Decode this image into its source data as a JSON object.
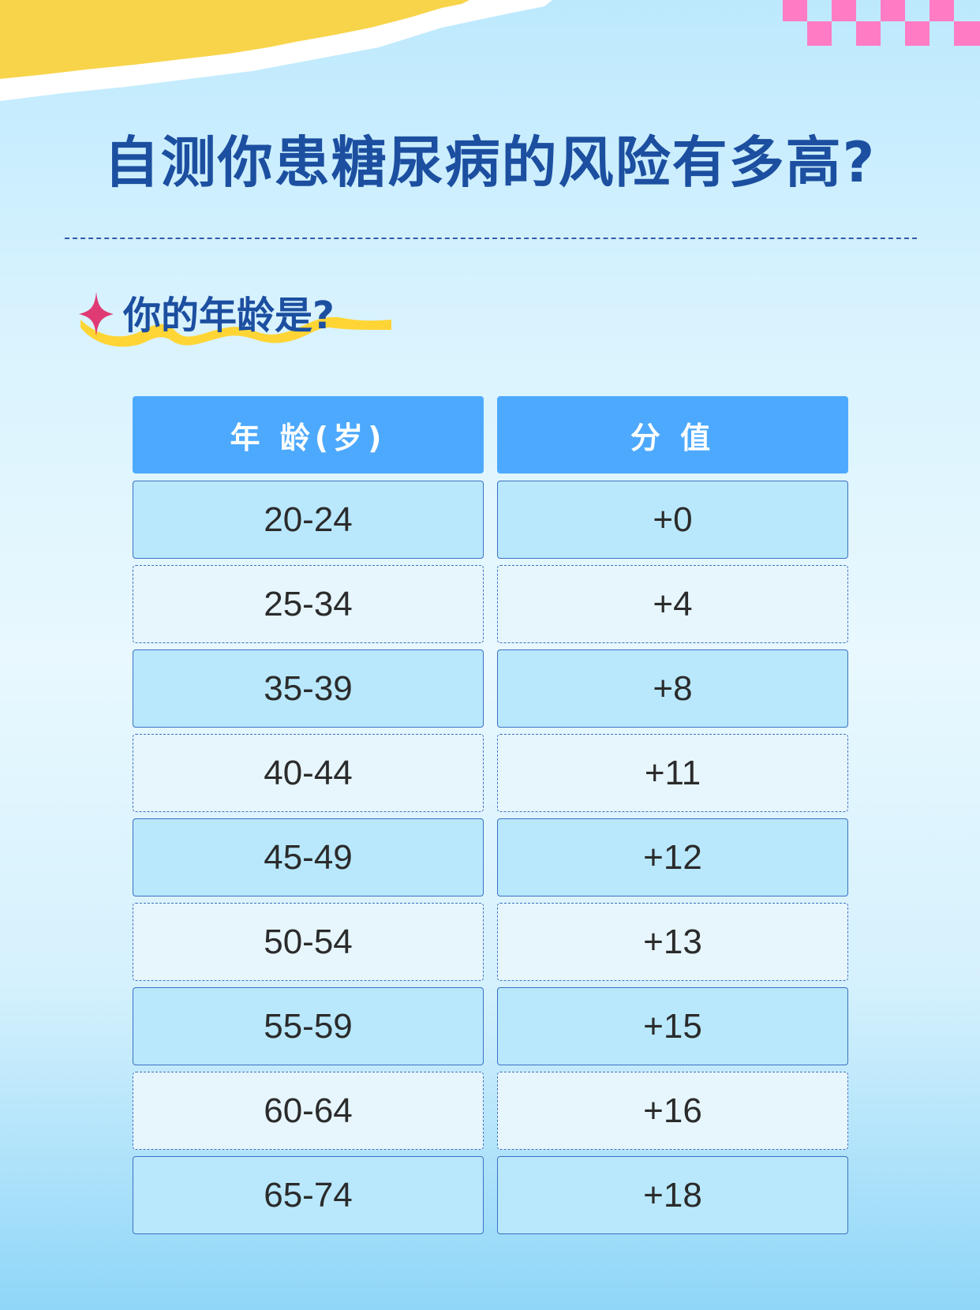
{
  "title": "自测你患糖尿病的风险有多高?",
  "subtitle": "你的年龄是?",
  "table": {
    "headers": [
      "年 龄(岁)",
      "分 值"
    ],
    "rows": [
      {
        "age": "20-24",
        "score": "+0"
      },
      {
        "age": "25-34",
        "score": "+4"
      },
      {
        "age": "35-39",
        "score": "+8"
      },
      {
        "age": "40-44",
        "score": "+11"
      },
      {
        "age": "45-49",
        "score": "+12"
      },
      {
        "age": "50-54",
        "score": "+13"
      },
      {
        "age": "55-59",
        "score": "+15"
      },
      {
        "age": "60-64",
        "score": "+16"
      },
      {
        "age": "65-74",
        "score": "+18"
      }
    ]
  },
  "colors": {
    "title": "#1c4fa0",
    "header": "#4da9fd",
    "accent_pink": "#e03a74",
    "accent_yellow": "#ffd535"
  },
  "icons": {
    "subtitle_marker": "sparkle-icon"
  }
}
